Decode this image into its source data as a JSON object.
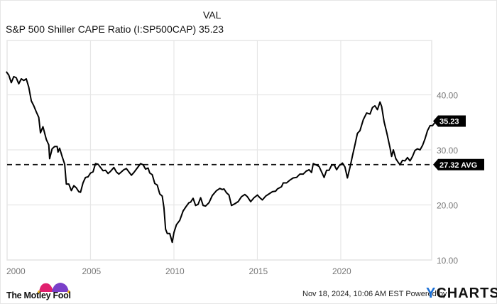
{
  "header": {
    "series_name": "S&P 500 Shiller CAPE Ratio (I:SP500CAP)",
    "column_label": "VAL",
    "current_value": "35.23"
  },
  "footer": {
    "timestamp": "Nov 18, 2024, 10:06 AM EST",
    "powered_by": "Powered by",
    "brand_y": "Y",
    "brand_rest": "CHARTS",
    "logo_text": "The Motley Fool"
  },
  "labels": {
    "last_value_flag": "35.23",
    "avg_flag": "27.32 AVG"
  },
  "colors": {
    "line": "#000000",
    "grid": "#e6e6e6",
    "flag_bg": "#000000",
    "ycharts_blue": "#1a6fd6",
    "fool_pink": "#e0206e",
    "fool_purple": "#7a3fc9",
    "fool_yellow": "#f2b51d"
  },
  "chart_data": {
    "type": "line",
    "title": "S&P 500 Shiller CAPE Ratio (I:SP500CAP)",
    "xlabel": "",
    "ylabel": "",
    "x_ticks": [
      "2000",
      "2005",
      "2010",
      "2015",
      "2020"
    ],
    "y_ticks": [
      "10.00",
      "20.00",
      "30.00",
      "40.00"
    ],
    "xlim": [
      2000,
      2024.8
    ],
    "ylim": [
      10,
      50
    ],
    "grid": true,
    "legend_position": "none",
    "average": 27.32,
    "last_value": 35.23,
    "series": [
      {
        "name": "S&P 500 Shiller CAPE Ratio",
        "points": [
          [
            1999.95,
            44.2
          ],
          [
            2000.1,
            43.6
          ],
          [
            2000.25,
            42.2
          ],
          [
            2000.4,
            43.3
          ],
          [
            2000.55,
            43.1
          ],
          [
            2000.7,
            42.0
          ],
          [
            2000.85,
            42.9
          ],
          [
            2001.0,
            42.6
          ],
          [
            2001.15,
            42.9
          ],
          [
            2001.3,
            41.4
          ],
          [
            2001.45,
            38.9
          ],
          [
            2001.6,
            38.0
          ],
          [
            2001.75,
            36.9
          ],
          [
            2001.9,
            35.9
          ],
          [
            2002.0,
            33.1
          ],
          [
            2002.15,
            34.2
          ],
          [
            2002.35,
            31.9
          ],
          [
            2002.5,
            30.9
          ],
          [
            2002.55,
            28.4
          ],
          [
            2002.7,
            30.2
          ],
          [
            2002.85,
            30.6
          ],
          [
            2003.0,
            30.6
          ],
          [
            2003.05,
            29.6
          ],
          [
            2003.15,
            30.3
          ],
          [
            2003.3,
            28.8
          ],
          [
            2003.45,
            27.4
          ],
          [
            2003.55,
            23.8
          ],
          [
            2003.7,
            23.8
          ],
          [
            2003.85,
            22.6
          ],
          [
            2004.0,
            23.5
          ],
          [
            2004.15,
            23.1
          ],
          [
            2004.3,
            22.4
          ],
          [
            2004.4,
            22.3
          ],
          [
            2004.55,
            24.0
          ],
          [
            2004.7,
            25.0
          ],
          [
            2004.85,
            25.1
          ],
          [
            2005.0,
            25.8
          ],
          [
            2005.15,
            26.0
          ],
          [
            2005.3,
            27.5
          ],
          [
            2005.45,
            27.4
          ],
          [
            2005.6,
            26.8
          ],
          [
            2005.75,
            26.2
          ],
          [
            2005.9,
            26.3
          ],
          [
            2006.05,
            25.7
          ],
          [
            2006.2,
            26.1
          ],
          [
            2006.4,
            26.8
          ],
          [
            2006.55,
            26.0
          ],
          [
            2006.7,
            25.6
          ],
          [
            2006.85,
            26.0
          ],
          [
            2007.0,
            26.4
          ],
          [
            2007.15,
            26.6
          ],
          [
            2007.3,
            26.0
          ],
          [
            2007.45,
            25.4
          ],
          [
            2007.6,
            25.9
          ],
          [
            2007.75,
            26.5
          ],
          [
            2007.9,
            27.1
          ],
          [
            2008.0,
            27.5
          ],
          [
            2008.15,
            27.3
          ],
          [
            2008.3,
            26.5
          ],
          [
            2008.45,
            26.7
          ],
          [
            2008.55,
            25.8
          ],
          [
            2008.7,
            25.5
          ],
          [
            2008.85,
            23.9
          ],
          [
            2009.0,
            23.6
          ],
          [
            2009.15,
            22.0
          ],
          [
            2009.3,
            21.6
          ],
          [
            2009.4,
            19.5
          ],
          [
            2009.5,
            15.6
          ],
          [
            2009.6,
            14.8
          ],
          [
            2009.75,
            14.8
          ],
          [
            2009.9,
            13.2
          ],
          [
            2010.0,
            15.0
          ],
          [
            2010.15,
            16.4
          ],
          [
            2010.35,
            17.2
          ],
          [
            2010.55,
            18.9
          ],
          [
            2010.75,
            19.8
          ],
          [
            2010.9,
            20.4
          ],
          [
            2011.0,
            20.5
          ],
          [
            2011.15,
            21.2
          ],
          [
            2011.3,
            19.9
          ],
          [
            2011.45,
            20.1
          ],
          [
            2011.6,
            21.3
          ],
          [
            2011.75,
            19.9
          ],
          [
            2011.9,
            19.8
          ],
          [
            2012.1,
            20.4
          ],
          [
            2012.3,
            21.7
          ],
          [
            2012.55,
            22.6
          ],
          [
            2012.75,
            23.0
          ],
          [
            2012.9,
            22.8
          ],
          [
            2013.0,
            22.9
          ],
          [
            2013.15,
            22.2
          ],
          [
            2013.3,
            21.8
          ],
          [
            2013.45,
            19.9
          ],
          [
            2013.65,
            20.2
          ],
          [
            2013.85,
            20.6
          ],
          [
            2014.05,
            21.5
          ],
          [
            2014.25,
            21.9
          ],
          [
            2014.4,
            21.5
          ],
          [
            2014.6,
            20.6
          ],
          [
            2014.8,
            21.3
          ],
          [
            2015.0,
            21.8
          ],
          [
            2015.15,
            21.3
          ],
          [
            2015.3,
            20.9
          ],
          [
            2015.5,
            21.6
          ],
          [
            2015.7,
            22.0
          ],
          [
            2015.9,
            22.4
          ],
          [
            2016.1,
            22.5
          ],
          [
            2016.2,
            22.9
          ],
          [
            2016.45,
            23.3
          ],
          [
            2016.55,
            24.0
          ],
          [
            2016.75,
            24.0
          ],
          [
            2016.95,
            24.5
          ],
          [
            2017.15,
            24.9
          ],
          [
            2017.35,
            25.0
          ],
          [
            2017.55,
            25.6
          ],
          [
            2017.75,
            25.6
          ],
          [
            2017.95,
            26.2
          ],
          [
            2018.0,
            26.2
          ],
          [
            2018.1,
            26.4
          ],
          [
            2018.25,
            25.9
          ],
          [
            2018.35,
            27.5
          ],
          [
            2018.5,
            27.3
          ],
          [
            2018.7,
            27.0
          ],
          [
            2018.85,
            26.0
          ],
          [
            2019.0,
            25.0
          ],
          [
            2019.15,
            26.3
          ],
          [
            2019.3,
            26.3
          ],
          [
            2019.45,
            27.2
          ],
          [
            2019.6,
            27.3
          ],
          [
            2019.75,
            26.4
          ],
          [
            2019.9,
            27.1
          ],
          [
            2020.1,
            27.6
          ],
          [
            2020.25,
            26.9
          ],
          [
            2020.4,
            24.9
          ],
          [
            2020.55,
            26.8
          ],
          [
            2020.7,
            28.9
          ],
          [
            2020.85,
            30.9
          ],
          [
            2021.0,
            33.0
          ],
          [
            2021.15,
            33.5
          ],
          [
            2021.35,
            35.5
          ],
          [
            2021.55,
            36.7
          ],
          [
            2021.75,
            36.5
          ],
          [
            2021.9,
            37.7
          ],
          [
            2022.05,
            38.0
          ],
          [
            2022.2,
            37.3
          ],
          [
            2022.35,
            38.7
          ],
          [
            2022.45,
            37.9
          ],
          [
            2022.6,
            35.1
          ],
          [
            2022.75,
            33.2
          ],
          [
            2022.95,
            30.4
          ],
          [
            2023.05,
            28.8
          ],
          [
            2023.15,
            30.0
          ],
          [
            2023.3,
            28.4
          ],
          [
            2023.45,
            27.7
          ],
          [
            2023.55,
            27.3
          ],
          [
            2023.7,
            28.1
          ],
          [
            2023.85,
            28.0
          ],
          [
            2024.0,
            28.6
          ],
          [
            2024.15,
            28.0
          ],
          [
            2024.3,
            28.8
          ],
          [
            2024.45,
            29.9
          ],
          [
            2024.6,
            30.2
          ],
          [
            2024.75,
            30.0
          ],
          [
            2024.9,
            30.8
          ],
          [
            2025.05,
            32.0
          ],
          [
            2025.2,
            33.5
          ],
          [
            2025.35,
            34.4
          ],
          [
            2025.5,
            34.4
          ],
          [
            2025.7,
            35.2
          ]
        ]
      }
    ]
  }
}
